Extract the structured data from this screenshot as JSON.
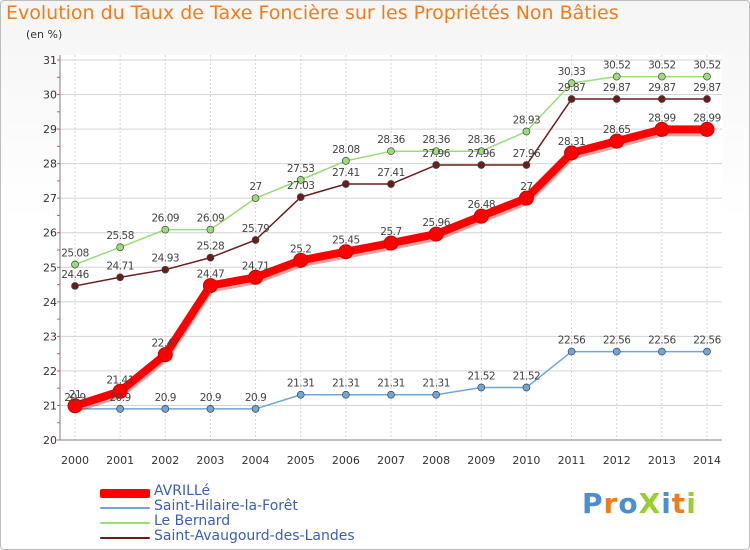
{
  "title": "Evolution du Taux de Taxe Foncière sur les Propriétés Non Bâties",
  "unit": "(en %)",
  "logo": "ProXiti",
  "colors": {
    "title": "#f07c1a",
    "grid": "#d4d4d4",
    "axis": "#7f7f7f",
    "legend_text": "#3b5fb7"
  },
  "chart_data": {
    "type": "line",
    "title": "Evolution du Taux de Taxe Foncière sur les Propriétés Non Bâties",
    "ylabel": "(en %)",
    "x": [
      "2000",
      "2001",
      "2002",
      "2003",
      "2004",
      "2005",
      "2006",
      "2007",
      "2008",
      "2009",
      "2010",
      "2011",
      "2012",
      "2013",
      "2014"
    ],
    "ylim": [
      20,
      31
    ],
    "yticks": [
      20,
      21,
      22,
      23,
      24,
      25,
      26,
      27,
      28,
      29,
      30,
      31
    ],
    "grid": true,
    "legend_position": "bottom",
    "series": [
      {
        "name": "AVRILLé",
        "color": "#ff0000",
        "width": 8,
        "values": [
          20.99,
          21.41,
          22.47,
          24.47,
          24.71,
          25.2,
          25.45,
          25.7,
          25.96,
          26.48,
          27,
          28.31,
          28.65,
          28.99,
          28.99
        ]
      },
      {
        "name": "Saint-Hilaire-la-Forêt",
        "color": "#6fa6d6",
        "width": 1.5,
        "values": [
          20.9,
          20.9,
          20.9,
          20.9,
          20.9,
          21.31,
          21.31,
          21.31,
          21.31,
          21.52,
          21.52,
          22.56,
          22.56,
          22.56,
          22.56
        ]
      },
      {
        "name": "Le Bernard",
        "color": "#99dd77",
        "width": 1.5,
        "values": [
          25.08,
          25.58,
          26.09,
          26.09,
          27,
          27.53,
          28.08,
          28.36,
          28.36,
          28.36,
          28.93,
          30.33,
          30.52,
          30.52,
          30.52
        ]
      },
      {
        "name": "Saint-Avaugourd-des-Landes",
        "color": "#6b1d1d",
        "width": 1.5,
        "values": [
          24.46,
          24.71,
          24.93,
          25.28,
          25.79,
          27.03,
          27.41,
          27.41,
          27.96,
          27.96,
          27.96,
          29.87,
          29.87,
          29.87,
          29.87
        ]
      }
    ],
    "labels": [
      [
        "21",
        "21.41",
        "22.47",
        "24.47",
        "24.71",
        "25.2",
        "25.45",
        "25.7",
        "25.96",
        "26.48",
        "27",
        "28.31",
        "28.65",
        "28.99",
        "28.99"
      ],
      [
        "20.9",
        "20.9",
        "20.9",
        "20.9",
        "20.9",
        "21.31",
        "21.31",
        "21.31",
        "21.31",
        "21.52",
        "21.52",
        "22.56",
        "22.56",
        "22.56",
        "22.56"
      ],
      [
        "25.08",
        "25.58",
        "26.09",
        "26.09",
        "27",
        "27.53",
        "28.08",
        "28.36",
        "28.36",
        "28.36",
        "28.93",
        "30.33",
        "30.52",
        "30.52",
        "30.52"
      ],
      [
        "24.46",
        "24.71",
        "24.93",
        "25.28",
        "25.79",
        "27.03",
        "27.41",
        "27.41",
        "27.96",
        "27.96",
        "27.96",
        "29.87",
        "29.87",
        "29.87",
        "29.87"
      ]
    ]
  }
}
